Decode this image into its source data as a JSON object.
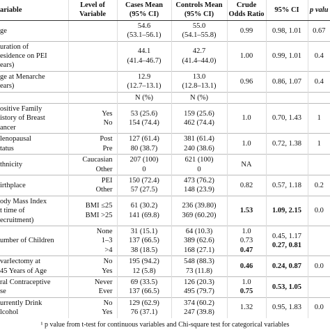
{
  "table": {
    "header": [
      [
        "ariable"
      ],
      [
        "Level of",
        "Variable"
      ],
      [
        "Cases Mean",
        "(95% CI)"
      ],
      [
        "Controls Mean",
        "(95% CI)"
      ],
      [
        "Crude",
        "Odds Ratio"
      ],
      [
        "95% CI"
      ],
      [
        "p valu"
      ]
    ],
    "rows": [
      [
        [
          "ge"
        ],
        [],
        [
          "54.6",
          "(53.1–56.1)"
        ],
        [
          "55.0",
          "(54.1–55.8)"
        ],
        [
          "0.99"
        ],
        [
          "0.98, 1.01"
        ],
        [
          "0.67"
        ]
      ],
      [
        [
          "uration of",
          "esidence on PEI",
          "ears)"
        ],
        [],
        [
          "44.1",
          "(41.4–46.7)"
        ],
        [
          "42.7",
          "(41.4–44.0)"
        ],
        [
          "1.00"
        ],
        [
          "0.99, 1.01"
        ],
        [
          "0.4"
        ]
      ],
      [
        [
          "ge at Menarche",
          "ears)"
        ],
        [],
        [
          "12.9",
          "(12.7–13.1)"
        ],
        [
          "13.0",
          "(12.8–13.1)"
        ],
        [
          "0.96"
        ],
        [
          "0.86, 1.07"
        ],
        [
          "0.4"
        ]
      ],
      [
        [],
        [],
        [
          "N (%)"
        ],
        [
          "N (%)"
        ],
        [],
        [],
        []
      ],
      [
        [
          "ositive Family",
          "istory of Breast",
          "ancer"
        ],
        [
          "Yes",
          "No"
        ],
        [
          "53 (25.6)",
          "154 (74.4)"
        ],
        [
          "159 (25.6)",
          "462 (74.4)"
        ],
        [
          "1.0"
        ],
        [
          "0.70, 1.43"
        ],
        [
          "1"
        ]
      ],
      [
        [
          "lenopausal",
          "tatus"
        ],
        [
          "Post",
          "Pre"
        ],
        [
          "127 (61.4)",
          "80 (38.7)"
        ],
        [
          "381 (61.4)",
          "240 (38.6)"
        ],
        [
          "1.0"
        ],
        [
          "0.72, 1.38"
        ],
        [
          "1"
        ]
      ],
      [
        [
          "thnicity"
        ],
        [
          "Caucasian",
          "Other"
        ],
        [
          "207 (100)",
          "0"
        ],
        [
          "621 (100)",
          "0"
        ],
        [
          "NA"
        ],
        [],
        []
      ],
      [
        [
          "irthplace"
        ],
        [
          "PEI",
          "Other"
        ],
        [
          "150 (72.4)",
          "57 (27.5)"
        ],
        [
          "473 (76.2)",
          "148 (23.9)"
        ],
        [
          "0.82"
        ],
        [
          "0.57, 1.18"
        ],
        [
          "0.2"
        ]
      ],
      [
        [
          "ody Mass Index",
          "t time of",
          "ecruitment)"
        ],
        [
          "BMI ≤25",
          "BMI >25"
        ],
        [
          "61 (30.2)",
          "141 (69.8)"
        ],
        [
          "236 (39.80)",
          "369 (60.20)"
        ],
        [
          {
            "text": "1.53",
            "bold": true
          }
        ],
        [
          {
            "text": "1.09, 2.15",
            "bold": true
          }
        ],
        [
          "0.0"
        ]
      ],
      [
        [
          "umber of Children"
        ],
        [
          "None",
          "1–3",
          ">4"
        ],
        [
          "31 (15.1)",
          "137 (66.5)",
          "38 (18.5)"
        ],
        [
          "64 (10.3)",
          "389 (62.6)",
          "168 (27.1)"
        ],
        [
          "1.0",
          "0.73",
          {
            "text": "0.47",
            "bold": true
          }
        ],
        [
          "0.45, 1.17",
          {
            "text": "0.27, 0.81",
            "bold": true
          }
        ],
        []
      ],
      [
        [
          "varIectomy at",
          "45 Years of Age"
        ],
        [
          "No",
          "Yes"
        ],
        [
          "195 (94.2)",
          "12 (5.8)"
        ],
        [
          "548 (88.3)",
          "73 (11.8)"
        ],
        [
          {
            "text": "0.46",
            "bold": true
          }
        ],
        [
          {
            "text": "0.24, 0.87",
            "bold": true
          }
        ],
        [
          "0.0"
        ]
      ],
      [
        [
          "ral Contraceptive",
          "se"
        ],
        [
          "Never",
          "Ever"
        ],
        [
          "69 (33.5)",
          "137 (66.5)"
        ],
        [
          "126 (20.3)",
          "495 (79.7)"
        ],
        [
          "1.0",
          {
            "text": "0.75",
            "bold": true
          }
        ],
        [
          {
            "text": "0.53, 1.05",
            "bold": true
          }
        ],
        []
      ],
      [
        [
          "urrently Drink",
          "lcohol"
        ],
        [
          "No",
          "Yes"
        ],
        [
          "129 (62.9)",
          "76 (37.1)"
        ],
        [
          "374 (60.2)",
          "247 (39.8)"
        ],
        [
          "1.32"
        ],
        [
          "0.95, 1.83"
        ],
        [
          "0.0"
        ]
      ]
    ],
    "footnote": "¹ p value from t-test for continuous variables and Chi-square test for categorical variables"
  }
}
